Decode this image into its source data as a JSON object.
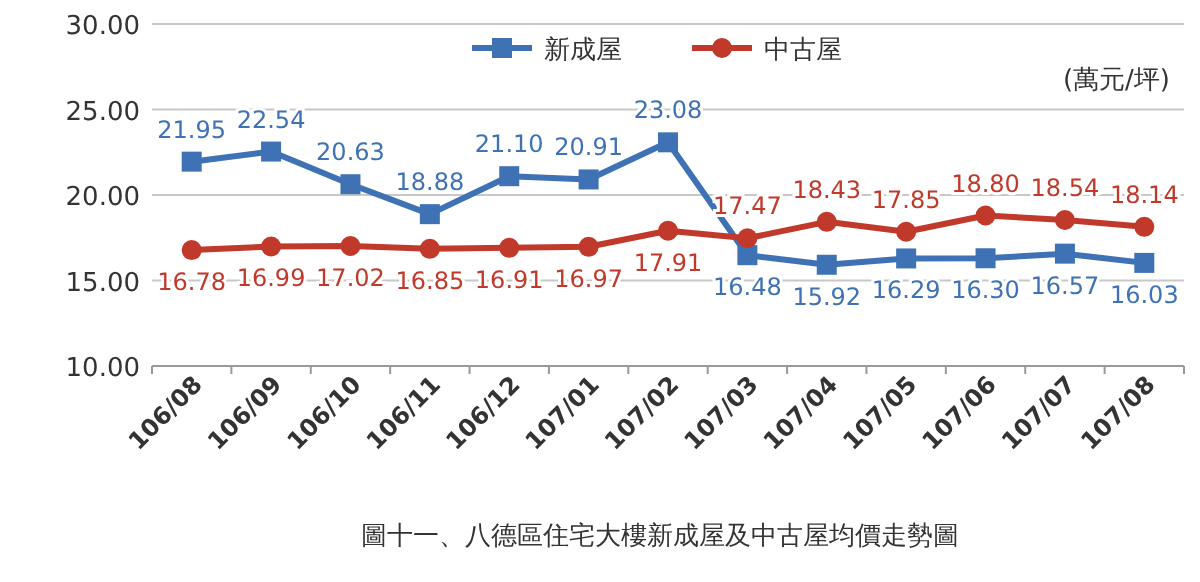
{
  "chart_data": {
    "type": "line",
    "categories": [
      "106/08",
      "106/09",
      "106/10",
      "106/11",
      "106/12",
      "107/01",
      "107/02",
      "107/03",
      "107/04",
      "107/05",
      "107/06",
      "107/07",
      "107/08"
    ],
    "series": [
      {
        "name": "新成屋",
        "color": "#3f72b5",
        "marker": "square",
        "values": [
          21.95,
          22.54,
          20.63,
          18.88,
          21.1,
          20.91,
          23.08,
          16.48,
          15.92,
          16.29,
          16.3,
          16.57,
          16.03
        ],
        "value_labels": [
          "21.95",
          "22.54",
          "20.63",
          "18.88",
          "21.10",
          "20.91",
          "23.08",
          "16.48",
          "15.92",
          "16.29",
          "16.30",
          "16.57",
          "16.03"
        ]
      },
      {
        "name": "中古屋",
        "color": "#c0392b",
        "marker": "circle",
        "values": [
          16.78,
          16.99,
          17.02,
          16.85,
          16.91,
          16.97,
          17.91,
          17.47,
          18.43,
          17.85,
          18.8,
          18.54,
          18.14
        ],
        "value_labels": [
          "16.78",
          "16.99",
          "17.02",
          "16.85",
          "16.91",
          "16.97",
          "17.91",
          "17.47",
          "18.43",
          "17.85",
          "18.80",
          "18.54",
          "18.14"
        ]
      }
    ],
    "ylim": [
      10,
      30
    ],
    "yticks": [
      {
        "value": 10,
        "label": "10.00"
      },
      {
        "value": 15,
        "label": "15.00"
      },
      {
        "value": 20,
        "label": "20.00"
      },
      {
        "value": 25,
        "label": "25.00"
      },
      {
        "value": 30,
        "label": "30.00"
      }
    ],
    "grid": "y",
    "legend": "top",
    "annotations": [
      "(萬元/坪)",
      "圖十一、八德區住宅大樓新成屋及中古屋均價走勢圖"
    ]
  }
}
